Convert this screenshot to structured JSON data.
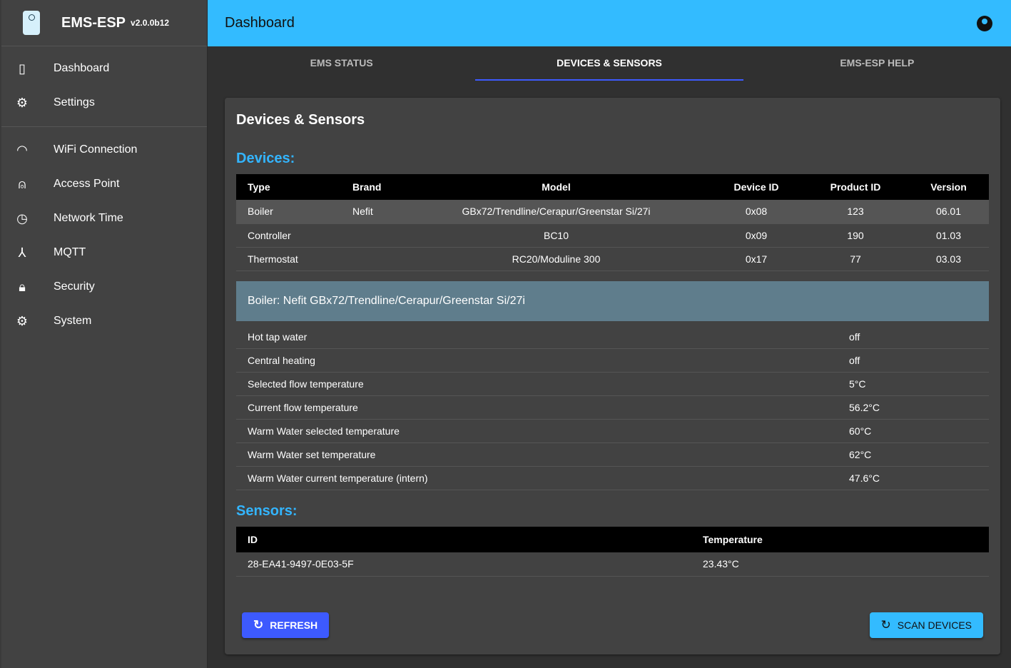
{
  "app": {
    "name": "EMS-ESP",
    "version": "v2.0.0b12"
  },
  "sidebar": {
    "items": [
      {
        "label": "Dashboard",
        "icon": "remote-icon"
      },
      {
        "label": "Settings",
        "icon": "gear-icon"
      },
      {
        "label": "WiFi Connection",
        "icon": "wifi-icon"
      },
      {
        "label": "Access Point",
        "icon": "antenna-icon"
      },
      {
        "label": "Network Time",
        "icon": "clock-icon"
      },
      {
        "label": "MQTT",
        "icon": "hub-icon"
      },
      {
        "label": "Security",
        "icon": "lock-icon"
      },
      {
        "label": "System",
        "icon": "gear-icon"
      }
    ]
  },
  "header": {
    "title": "Dashboard"
  },
  "tabs": [
    {
      "label": "EMS STATUS"
    },
    {
      "label": "DEVICES & SENSORS",
      "active": true
    },
    {
      "label": "EMS-ESP HELP"
    }
  ],
  "card": {
    "title": "Devices & Sensors",
    "devices_heading": "Devices:",
    "sensors_heading": "Sensors:"
  },
  "devices": {
    "headers": [
      "Type",
      "Brand",
      "Model",
      "Device ID",
      "Product ID",
      "Version"
    ],
    "rows": [
      [
        "Boiler",
        "Nefit",
        "GBx72/Trendline/Cerapur/Greenstar Si/27i",
        "0x08",
        "123",
        "06.01"
      ],
      [
        "Controller",
        "",
        "BC10",
        "0x09",
        "190",
        "01.03"
      ],
      [
        "Thermostat",
        "",
        "RC20/Moduline 300",
        "0x17",
        "77",
        "03.03"
      ]
    ]
  },
  "selected_device": {
    "title": "Boiler: Nefit GBx72/Trendline/Cerapur/Greenstar Si/27i",
    "rows": [
      [
        "Hot tap water",
        "off"
      ],
      [
        "Central heating",
        "off"
      ],
      [
        "Selected flow temperature",
        "5°C"
      ],
      [
        "Current flow temperature",
        "56.2°C"
      ],
      [
        "Warm Water selected temperature",
        "60°C"
      ],
      [
        "Warm Water set temperature",
        "62°C"
      ],
      [
        "Warm Water current temperature (intern)",
        "47.6°C"
      ]
    ]
  },
  "sensors": {
    "headers": [
      "ID",
      "Temperature"
    ],
    "rows": [
      [
        "28-EA41-9497-0E03-5F",
        "23.43°C"
      ]
    ]
  },
  "buttons": {
    "refresh": "REFRESH",
    "scan": "SCAN DEVICES"
  },
  "colors": {
    "appbar": "#33bbff",
    "primary": "#3d5afe",
    "heading": "#33b5ff",
    "device_bar": "#5f7d8c"
  }
}
